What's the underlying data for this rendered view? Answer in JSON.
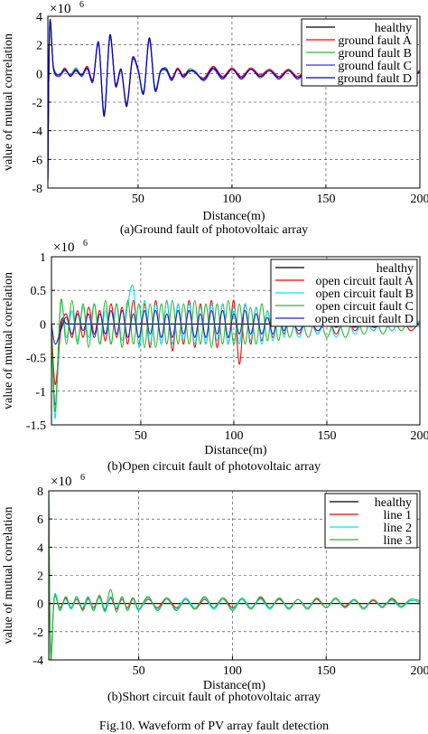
{
  "figure_caption": "Fig.10. Waveform of PV array fault detection",
  "chart_data": [
    {
      "type": "line",
      "caption": "(a)Ground fault of photovoltaic array",
      "xlabel": "Distance(m)",
      "ylabel": "value of mutual correlation",
      "exponent_label": "×10",
      "exponent_power": "6",
      "xlim": [
        2,
        200
      ],
      "ylim": [
        -8,
        4
      ],
      "xticks": [
        "50",
        "100",
        "150",
        "200"
      ],
      "yticks": [
        "-8",
        "-6",
        "-4",
        "-2",
        "0",
        "2",
        "4"
      ],
      "grid": "dashed",
      "legend": "top-right",
      "x": [
        2,
        3,
        5,
        8,
        11,
        14,
        17,
        20,
        23,
        26,
        29,
        32,
        35,
        38,
        41,
        44,
        47,
        50,
        53,
        56,
        59,
        62,
        65,
        68,
        71,
        74,
        77,
        80,
        85,
        90,
        95,
        100,
        105,
        110,
        115,
        120,
        125,
        130,
        135,
        140,
        145,
        150,
        155,
        160,
        165,
        170,
        175,
        180,
        185,
        190,
        195,
        200
      ],
      "series": [
        {
          "name": "healthy",
          "color": "#000000",
          "values": [
            -7.6,
            3.5,
            0.4,
            -0.1,
            0.3,
            -0.1,
            0.2,
            -0.2,
            0.4,
            -0.5,
            2.2,
            -3.0,
            2.7,
            -0.8,
            0.2,
            -2.3,
            1.0,
            0.3,
            -1.4,
            2.5,
            -1.2,
            0.1,
            0.2,
            -0.4,
            0.3,
            -0.2,
            0.1,
            0.2,
            -0.4,
            0.4,
            -0.3,
            0.3,
            -0.3,
            0.3,
            -0.2,
            0.2,
            -0.3,
            0.2,
            -0.3,
            0.2,
            -0.2,
            0.3,
            -0.2,
            0.2,
            -0.3,
            0.2,
            -0.2,
            0.2,
            -0.2,
            0.3,
            -0.1,
            0.1
          ]
        },
        {
          "name": "ground fault A",
          "color": "#ff0000",
          "values": [
            -7.3,
            3.3,
            0.3,
            -0.2,
            0.4,
            -0.2,
            0.3,
            -0.1,
            0.5,
            -0.4,
            2.0,
            -2.8,
            2.6,
            -0.7,
            0.3,
            -2.1,
            1.1,
            0.2,
            -1.3,
            2.3,
            -1.1,
            0.2,
            0.3,
            -0.3,
            0.4,
            -0.1,
            0.2,
            0.1,
            -0.3,
            0.5,
            -0.2,
            0.4,
            -0.2,
            0.4,
            -0.1,
            0.3,
            -0.2,
            0.3,
            -0.2,
            0.3,
            -0.1,
            0.4,
            -0.1,
            0.3,
            -0.2,
            0.3,
            -0.1,
            0.3,
            -0.1,
            0.4,
            0.0,
            0.2
          ]
        },
        {
          "name": "ground fault B",
          "color": "#2db82d",
          "values": [
            -7.2,
            3.2,
            0.5,
            -0.1,
            0.3,
            -0.1,
            0.4,
            -0.2,
            0.4,
            -0.5,
            2.1,
            -2.7,
            2.5,
            -0.8,
            0.2,
            -2.2,
            1.0,
            0.3,
            -1.2,
            2.4,
            -1.0,
            0.1,
            0.4,
            -0.4,
            0.3,
            -0.2,
            0.3,
            0.2,
            -0.4,
            0.4,
            -0.3,
            0.3,
            -0.3,
            0.3,
            -0.2,
            0.2,
            -0.3,
            0.2,
            -0.3,
            0.2,
            -0.2,
            0.3,
            -0.2,
            0.2,
            -0.3,
            0.2,
            -0.2,
            0.2,
            -0.2,
            0.3,
            -0.1,
            0.1
          ]
        },
        {
          "name": "ground fault C",
          "color": "#3333ff",
          "values": [
            -7.4,
            3.4,
            0.3,
            -0.2,
            0.2,
            -0.1,
            0.3,
            -0.2,
            0.3,
            -0.6,
            2.2,
            -2.9,
            2.6,
            -0.9,
            0.2,
            -2.2,
            0.9,
            0.2,
            -1.3,
            2.4,
            -1.2,
            0.1,
            0.2,
            -0.5,
            0.3,
            -0.3,
            0.1,
            0.2,
            -0.5,
            0.3,
            -0.4,
            0.3,
            -0.4,
            0.3,
            -0.3,
            0.2,
            -0.4,
            0.2,
            -0.4,
            0.2,
            -0.3,
            0.3,
            -0.3,
            0.2,
            -0.4,
            0.2,
            -0.3,
            0.2,
            -0.3,
            0.3,
            -0.2,
            0.1
          ]
        },
        {
          "name": "ground fault D",
          "color": "#0000cc",
          "values": [
            -7.5,
            3.5,
            0.4,
            -0.1,
            0.3,
            -0.2,
            0.2,
            -0.1,
            0.4,
            -0.5,
            2.1,
            -2.9,
            2.7,
            -0.8,
            0.3,
            -2.2,
            1.0,
            0.3,
            -1.4,
            2.5,
            -1.1,
            0.2,
            0.3,
            -0.4,
            0.3,
            -0.2,
            0.2,
            0.1,
            -0.4,
            0.4,
            -0.3,
            0.3,
            -0.3,
            0.3,
            -0.2,
            0.2,
            -0.3,
            0.2,
            -0.3,
            0.2,
            -0.2,
            0.3,
            -0.2,
            0.2,
            -0.3,
            0.2,
            -0.2,
            0.2,
            -0.2,
            0.3,
            -0.1,
            0.1
          ]
        }
      ]
    },
    {
      "type": "line",
      "caption": "(b)Open circuit fault of photovoltaic array",
      "xlabel": "Distance(m)",
      "ylabel": "value of mutual correlation",
      "exponent_label": "×10",
      "exponent_power": "6",
      "xlim": [
        2,
        200
      ],
      "ylim": [
        -1.5,
        1
      ],
      "xticks": [
        "50",
        "100",
        "150",
        "200"
      ],
      "yticks": [
        "-1.5",
        "-1",
        "-0.5",
        "0",
        "0.5",
        "1"
      ],
      "grid": "dashed",
      "legend": "top-right",
      "x": [
        2,
        4,
        7,
        10,
        13,
        16,
        19,
        22,
        25,
        28,
        31,
        34,
        37,
        40,
        43,
        46,
        49,
        52,
        55,
        58,
        61,
        64,
        67,
        70,
        73,
        76,
        79,
        82,
        85,
        88,
        91,
        94,
        97,
        100,
        103,
        106,
        109,
        112,
        115,
        118,
        121,
        124,
        127,
        130,
        135,
        140,
        145,
        150,
        155,
        160,
        165,
        170,
        175,
        180,
        185,
        190,
        195,
        200
      ],
      "series": [
        {
          "name": "healthy",
          "color": "#000000",
          "values": [
            0,
            -1.2,
            0.0,
            0.0,
            0.0,
            0.0,
            0.0,
            0.0,
            0.0,
            0.0,
            0.0,
            0.0,
            0.0,
            0.0,
            0.0,
            0.0,
            0.0,
            0.0,
            0.0,
            0.0,
            0.0,
            0.0,
            0.0,
            0.0,
            0.0,
            0.0,
            0.0,
            0.0,
            0.0,
            0.0,
            0.0,
            0.0,
            0.0,
            0.0,
            0.0,
            0.0,
            0.0,
            0.0,
            0.0,
            0.0,
            0.0,
            0.0,
            0.0,
            0.0,
            0.0,
            0.0,
            0.0,
            0.0,
            0.0,
            0.0,
            0.0,
            0.0,
            0.0,
            0.0,
            0.0,
            0.0,
            0.0,
            0.0
          ]
        },
        {
          "name": "open circuit fault A",
          "color": "#ff0000",
          "values": [
            0,
            -0.9,
            -0.1,
            0.15,
            -0.2,
            0.2,
            -0.2,
            0.25,
            -0.15,
            0.2,
            -0.25,
            0.3,
            -0.2,
            0.25,
            -0.3,
            0.35,
            -0.3,
            0.3,
            -0.35,
            0.35,
            -0.3,
            0.35,
            -0.4,
            0.3,
            -0.3,
            0.35,
            -0.35,
            0.3,
            -0.3,
            0.35,
            -0.35,
            0.3,
            -0.3,
            0.35,
            -0.6,
            0.3,
            -0.3,
            0.25,
            -0.25,
            0.2,
            -0.2,
            0.2,
            -0.15,
            0.15,
            -0.15,
            0.15,
            -0.15,
            0.15,
            -0.15,
            0.15,
            -0.1,
            0.1,
            -0.1,
            0.1,
            -0.1,
            0.1,
            -0.1,
            0.05
          ]
        },
        {
          "name": "open circuit fault B",
          "color": "#00e5ee",
          "values": [
            0,
            -1.4,
            0.3,
            -0.2,
            0.2,
            -0.25,
            0.25,
            -0.2,
            0.3,
            -0.3,
            0.2,
            -0.3,
            0.3,
            -0.25,
            0.3,
            0.55,
            -0.35,
            0.35,
            -0.3,
            0.3,
            -0.3,
            0.35,
            -0.3,
            0.3,
            -0.25,
            0.3,
            -0.3,
            0.25,
            -0.3,
            0.3,
            -0.25,
            0.3,
            -0.3,
            0.25,
            -0.3,
            0.3,
            -0.25,
            0.25,
            -0.3,
            0.2,
            -0.25,
            0.2,
            -0.2,
            0.2,
            -0.2,
            0.2,
            -0.15,
            0.15,
            -0.2,
            0.15,
            -0.15,
            0.1,
            -0.1,
            0.1,
            -0.1,
            0.1,
            -0.05,
            0.05
          ]
        },
        {
          "name": "open circuit fault C",
          "color": "#2db82d",
          "values": [
            0,
            -1.3,
            0.35,
            -0.3,
            0.35,
            -0.3,
            0.3,
            -0.35,
            0.3,
            -0.3,
            0.35,
            -0.3,
            0.3,
            -0.35,
            0.35,
            -0.3,
            0.3,
            -0.35,
            0.3,
            -0.35,
            0.3,
            -0.3,
            0.35,
            -0.3,
            0.3,
            -0.3,
            0.35,
            -0.3,
            0.3,
            -0.35,
            0.3,
            -0.3,
            0.35,
            -0.3,
            0.3,
            -0.3,
            0.25,
            -0.3,
            0.3,
            -0.25,
            0.25,
            -0.25,
            0.2,
            -0.2,
            0.2,
            -0.2,
            0.2,
            -0.2,
            0.15,
            -0.2,
            0.15,
            -0.15,
            0.15,
            -0.15,
            0.1,
            -0.1,
            0.1,
            -0.05
          ]
        },
        {
          "name": "open circuit fault D",
          "color": "#2222cc",
          "values": [
            0,
            -0.3,
            -0.1,
            0.1,
            -0.15,
            0.15,
            -0.1,
            0.15,
            -0.2,
            0.15,
            -0.15,
            0.2,
            -0.15,
            0.2,
            -0.2,
            0.15,
            -0.2,
            0.2,
            -0.15,
            0.2,
            -0.2,
            0.15,
            -0.2,
            0.2,
            -0.15,
            0.2,
            -0.2,
            0.15,
            -0.2,
            0.2,
            -0.15,
            0.2,
            -0.2,
            0.15,
            -0.15,
            0.2,
            -0.15,
            0.15,
            -0.15,
            0.1,
            -0.15,
            0.1,
            -0.1,
            0.1,
            -0.1,
            0.1,
            -0.1,
            0.05,
            -0.05,
            0.05,
            -0.05,
            0.05,
            -0.05,
            0.0,
            0.0,
            0.0,
            0.0,
            0.0
          ]
        }
      ]
    },
    {
      "type": "line",
      "caption": "(b)Short circuit fault of photovoltaic array",
      "xlabel": "Distance(m)",
      "ylabel": "value of mutual correlation",
      "exponent_label": "×10",
      "exponent_power": "6",
      "xlim": [
        2,
        200
      ],
      "ylim": [
        -4,
        8
      ],
      "xticks": [
        "50",
        "100",
        "150",
        "200"
      ],
      "yticks": [
        "-4",
        "-2",
        "0",
        "2",
        "4",
        "6",
        "8"
      ],
      "grid": "dashed",
      "legend": "top-right",
      "x": [
        2,
        3,
        5,
        8,
        11,
        14,
        17,
        20,
        23,
        26,
        29,
        32,
        35,
        38,
        41,
        44,
        47,
        50,
        55,
        60,
        65,
        70,
        75,
        80,
        85,
        90,
        95,
        100,
        105,
        110,
        115,
        120,
        125,
        130,
        135,
        140,
        145,
        150,
        155,
        160,
        165,
        170,
        175,
        180,
        185,
        190,
        195,
        200
      ],
      "series": [
        {
          "name": "healthy",
          "color": "#000000",
          "values": [
            0,
            0,
            0,
            0,
            0,
            0,
            0,
            0,
            0,
            0,
            0,
            0,
            0,
            0,
            0,
            0,
            0,
            0,
            0,
            0,
            0,
            0,
            0,
            0,
            0,
            0,
            0,
            0,
            0,
            0,
            0,
            0,
            0,
            0,
            0,
            0,
            0,
            0,
            0,
            0,
            0,
            0,
            0,
            0,
            0,
            0,
            0,
            0
          ]
        },
        {
          "name": "line 1",
          "color": "#ff0000",
          "values": [
            7.5,
            -3.5,
            0.5,
            -0.3,
            0.4,
            -0.3,
            0.3,
            -0.4,
            0.4,
            -0.3,
            0.5,
            -0.5,
            0.4,
            -0.4,
            0.3,
            -0.3,
            0.4,
            -0.4,
            0.3,
            -0.3,
            0.4,
            -0.3,
            0.3,
            -0.4,
            0.3,
            -0.3,
            0.4,
            -0.3,
            0.3,
            -0.3,
            0.4,
            -0.3,
            0.3,
            -0.3,
            0.3,
            -0.3,
            0.3,
            -0.3,
            0.3,
            -0.2,
            0.3,
            -0.3,
            0.2,
            -0.2,
            0.3,
            -0.2,
            0.2,
            0.1
          ]
        },
        {
          "name": "line 2",
          "color": "#00e5ee",
          "values": [
            7.8,
            -3.8,
            0.6,
            -0.4,
            0.3,
            -0.4,
            0.4,
            -0.3,
            0.5,
            -0.4,
            0.4,
            -0.6,
            0.5,
            -0.3,
            0.4,
            -0.4,
            0.3,
            -0.5,
            0.4,
            -0.4,
            0.3,
            -0.4,
            0.4,
            -0.3,
            0.4,
            -0.4,
            0.3,
            -0.4,
            0.4,
            -0.3,
            0.3,
            -0.4,
            0.4,
            -0.3,
            0.3,
            -0.3,
            0.4,
            -0.3,
            0.3,
            -0.3,
            0.2,
            -0.3,
            0.3,
            -0.2,
            0.2,
            -0.3,
            0.2,
            0.1
          ]
        },
        {
          "name": "line 3",
          "color": "#2db82d",
          "values": [
            8.0,
            -3.9,
            0.4,
            -0.5,
            0.5,
            -0.3,
            0.5,
            -0.5,
            0.3,
            -0.5,
            0.6,
            -0.4,
            1.0,
            -0.6,
            0.5,
            -0.5,
            0.4,
            -0.4,
            0.5,
            -0.5,
            0.4,
            -0.5,
            0.3,
            -0.4,
            0.5,
            -0.3,
            0.4,
            -0.5,
            0.3,
            -0.4,
            0.5,
            -0.3,
            0.4,
            -0.4,
            0.3,
            -0.4,
            0.4,
            -0.3,
            0.4,
            -0.3,
            0.3,
            -0.4,
            0.3,
            -0.3,
            0.4,
            -0.2,
            0.3,
            0.2
          ]
        }
      ]
    }
  ]
}
